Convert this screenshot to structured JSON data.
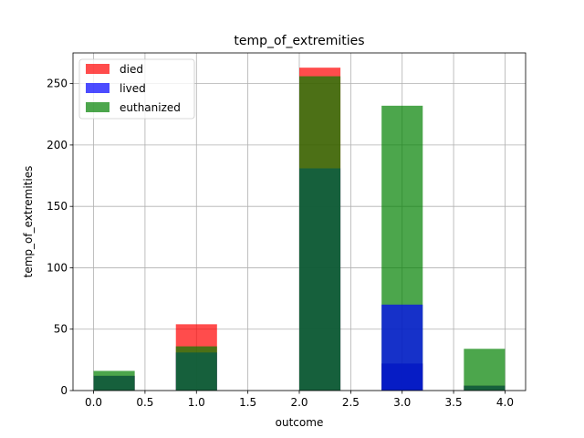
{
  "chart_data": {
    "type": "bar",
    "title": "temp_of_extremities",
    "xlabel": "outcome",
    "ylabel": "temp_of_extremities",
    "xlim": [
      -0.2,
      4.2
    ],
    "ylim": [
      0,
      275
    ],
    "xticks": [
      0.0,
      0.5,
      1.0,
      1.5,
      2.0,
      2.5,
      3.0,
      3.5,
      4.0
    ],
    "xtick_labels": [
      "0.0",
      "0.5",
      "1.0",
      "1.5",
      "2.0",
      "2.5",
      "3.0",
      "3.5",
      "4.0"
    ],
    "yticks": [
      0,
      50,
      100,
      150,
      200,
      250
    ],
    "ytick_labels": [
      "0",
      "50",
      "100",
      "150",
      "200",
      "250"
    ],
    "grid": true,
    "legend_position": "top-left",
    "bin_edges": [
      0.0,
      0.4,
      0.8,
      1.2,
      1.6,
      2.0,
      2.4,
      2.8,
      3.2,
      3.6,
      4.0
    ],
    "series": [
      {
        "name": "died",
        "color": "#ff0000",
        "values": [
          12,
          0,
          54,
          0,
          0,
          263,
          0,
          22,
          0,
          4
        ]
      },
      {
        "name": "lived",
        "color": "#0000ff",
        "values": [
          12,
          0,
          31,
          0,
          0,
          181,
          0,
          22,
          0,
          4
        ]
      },
      {
        "name": "euthanized",
        "color": "#008000",
        "values": [
          16,
          0,
          36,
          0,
          0,
          256,
          0,
          232,
          0,
          34
        ]
      }
    ],
    "lived_extra": {
      "bin": 7,
      "value": 70
    }
  }
}
